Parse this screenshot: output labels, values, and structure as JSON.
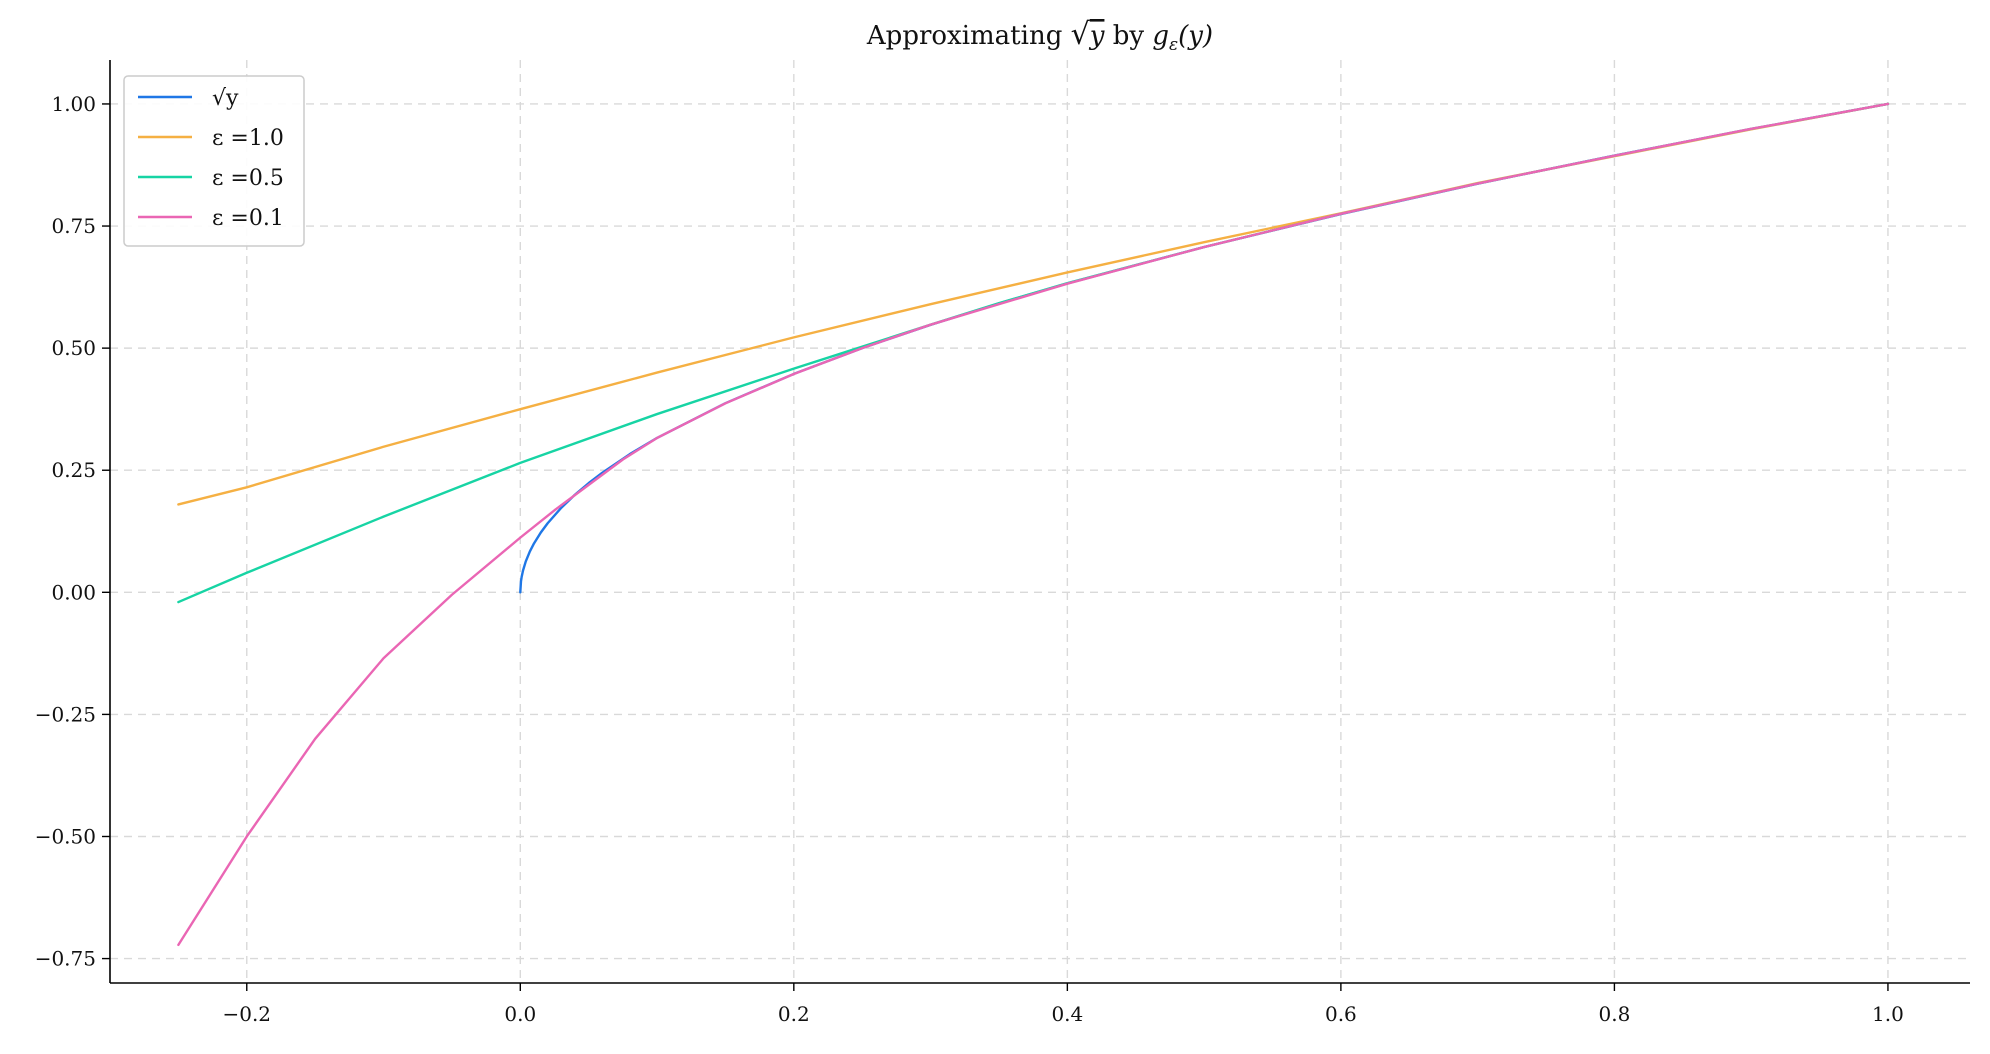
{
  "chart_data": {
    "type": "line",
    "title": "Approximating √y by gε(y)",
    "title_parts": {
      "prefix": "Approximating ",
      "sqrt_symbol": "√",
      "sqrt_var": "y",
      "middle": " by ",
      "func": "g",
      "func_sub": "ε",
      "func_arg": "(y)"
    },
    "xlabel": "",
    "ylabel": "",
    "xlim": [
      -0.3,
      1.06
    ],
    "ylim": [
      -0.8,
      1.09
    ],
    "x_ticks": [
      -0.2,
      0.0,
      0.2,
      0.4,
      0.6,
      0.8,
      1.0
    ],
    "x_tick_labels": [
      "−0.2",
      "0.0",
      "0.2",
      "0.4",
      "0.6",
      "0.8",
      "1.0"
    ],
    "y_ticks": [
      -0.75,
      -0.5,
      -0.25,
      0.0,
      0.25,
      0.5,
      0.75,
      1.0
    ],
    "y_tick_labels": [
      "−0.75",
      "−0.50",
      "−0.25",
      "0.00",
      "0.25",
      "0.50",
      "0.75",
      "1.00"
    ],
    "grid": true,
    "legend_position": "top-left",
    "series": [
      {
        "name": "√y",
        "color": "#1f77e6",
        "x": [
          0.0,
          0.0005,
          0.001,
          0.002,
          0.004,
          0.007,
          0.01,
          0.015,
          0.02,
          0.03,
          0.04,
          0.05,
          0.06,
          0.08,
          0.1,
          0.15,
          0.2,
          0.25,
          0.3,
          0.35,
          0.4,
          0.5,
          0.6,
          0.7,
          0.8,
          0.9,
          1.0
        ],
        "y": [
          0.0,
          0.0224,
          0.0316,
          0.0447,
          0.0632,
          0.0837,
          0.1,
          0.1225,
          0.1414,
          0.1732,
          0.2,
          0.2236,
          0.2449,
          0.2828,
          0.3162,
          0.3873,
          0.4472,
          0.5,
          0.5477,
          0.5916,
          0.6325,
          0.7071,
          0.7746,
          0.8367,
          0.8944,
          0.9487,
          1.0
        ]
      },
      {
        "name": "ε =1.0",
        "color": "#f5b043",
        "x": [
          -0.25,
          -0.2,
          -0.1,
          0.0,
          0.1,
          0.2,
          0.3,
          0.4,
          0.5,
          0.6,
          0.7,
          0.8,
          0.9,
          1.0
        ],
        "y": [
          0.18,
          0.215,
          0.298,
          0.375,
          0.45,
          0.522,
          0.59,
          0.655,
          0.717,
          0.776,
          0.838,
          0.893,
          0.948,
          1.0
        ]
      },
      {
        "name": "ε =0.5",
        "color": "#17d4a4",
        "x": [
          -0.25,
          -0.2,
          -0.1,
          0.0,
          0.1,
          0.2,
          0.25,
          0.3,
          0.35,
          0.4,
          0.5,
          0.6,
          0.7,
          0.8,
          0.9,
          1.0
        ],
        "y": [
          -0.02,
          0.04,
          0.155,
          0.265,
          0.365,
          0.458,
          0.503,
          0.548,
          0.592,
          0.633,
          0.707,
          0.775,
          0.837,
          0.894,
          0.949,
          1.0
        ]
      },
      {
        "name": "ε =0.1",
        "color": "#ea66b4",
        "x": [
          -0.25,
          -0.2,
          -0.15,
          -0.1,
          -0.05,
          0.0,
          0.025,
          0.05,
          0.075,
          0.1,
          0.15,
          0.2,
          0.25,
          0.3,
          0.4,
          0.5,
          0.6,
          0.7,
          0.8,
          0.9,
          1.0
        ],
        "y": [
          -0.722,
          -0.5,
          -0.3,
          -0.135,
          -0.005,
          0.112,
          0.168,
          0.22,
          0.272,
          0.316,
          0.387,
          0.447,
          0.5,
          0.548,
          0.632,
          0.707,
          0.775,
          0.837,
          0.894,
          0.949,
          1.0
        ]
      }
    ]
  }
}
